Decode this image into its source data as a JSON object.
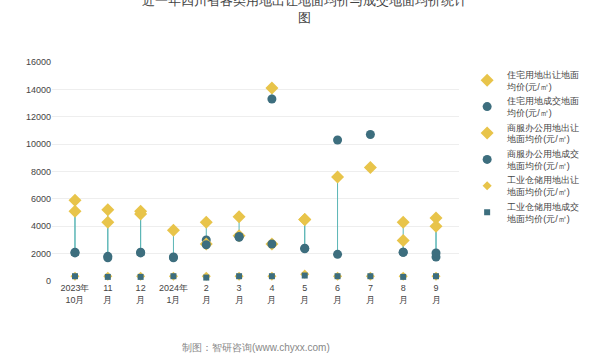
{
  "chart_data": {
    "type": "scatter",
    "title": "近一年四川省各类用地出让地面均价与成交地面均价统计\n图",
    "categories": [
      "2023年\n10月",
      "11\n月",
      "12\n月",
      "2024年\n1月",
      "2\n月",
      "3\n月",
      "4\n月",
      "5\n月",
      "6\n月",
      "7\n月",
      "8\n月",
      "9\n月"
    ],
    "series": [
      {
        "name": "住宅用地出让地面\n均价(元/㎡)",
        "color": "#e8c44a",
        "marker": "diamond",
        "values": [
          5900,
          5200,
          5100,
          3700,
          4300,
          3300,
          14100,
          4500,
          null,
          null,
          4300,
          4600
        ]
      },
      {
        "name": "住宅用地成交地面\n均价(元/㎡)",
        "color": "#3d6e7e",
        "marker": "circle",
        "values": [
          2100,
          1800,
          2100,
          1750,
          3000,
          3250,
          13300,
          2400,
          10300,
          10700,
          2100,
          1750
        ]
      },
      {
        "name": "商服办公用地出让\n地面均价(元/㎡)",
        "color": "#e8c44a",
        "marker": "diamond",
        "values": [
          5100,
          4300,
          4900,
          null,
          2700,
          4700,
          2700,
          4500,
          7600,
          8300,
          2950,
          4000
        ]
      },
      {
        "name": "商服办公用地成交\n地面均价(元/㎡)",
        "color": "#3d6e7e",
        "marker": "circle",
        "values": [
          2050,
          1700,
          2050,
          1700,
          2650,
          3200,
          2700,
          2350,
          1950,
          null,
          2100,
          2050
        ]
      },
      {
        "name": "工业仓储用地出让\n地面均价(元/㎡)",
        "color": "#e8c44a",
        "marker": "diamond",
        "values": [
          350,
          350,
          350,
          350,
          350,
          350,
          350,
          500,
          350,
          350,
          350,
          350
        ]
      },
      {
        "name": "工业仓储用地成交\n地面均价(元/㎡)",
        "color": "#3d6e7e",
        "marker": "square",
        "values": [
          350,
          300,
          300,
          350,
          250,
          350,
          350,
          400,
          350,
          350,
          300,
          350
        ]
      }
    ],
    "ylim": [
      0,
      16000
    ],
    "yticks": [
      0,
      2000,
      4000,
      6000,
      8000,
      10000,
      12000,
      14000,
      16000
    ],
    "grid": true,
    "legend": "right",
    "annotations": [
      "制图：智研咨询(www.chyxx.com)"
    ]
  }
}
